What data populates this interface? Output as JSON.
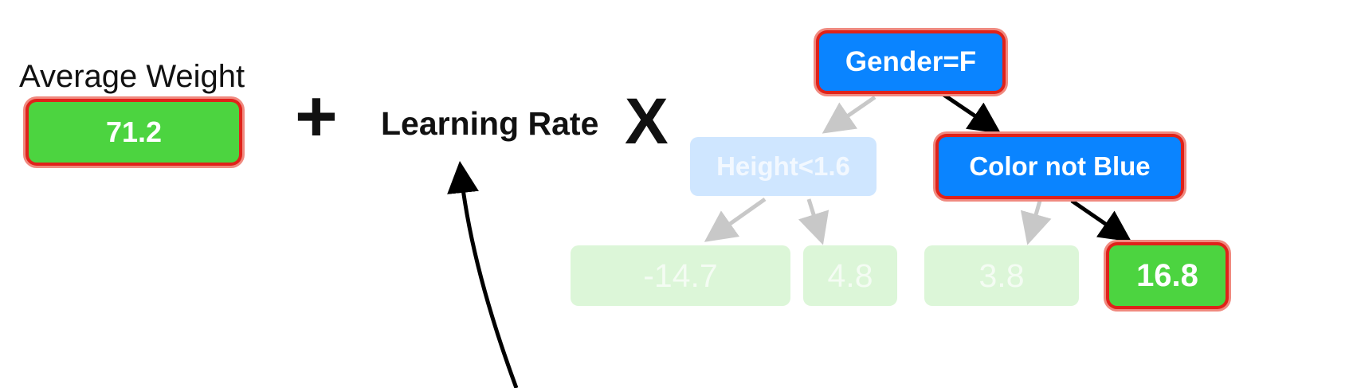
{
  "formula": {
    "average_label": "Average Weight",
    "average_value": "71.2",
    "plus_sign": "+",
    "learning_rate_label": "Learning Rate",
    "times_sign": "X"
  },
  "tree": {
    "root": "Gender=F",
    "left_internal": "Height<1.6",
    "right_internal": "Color not Blue",
    "leaves": [
      "-14.7",
      "4.8",
      "3.8",
      "16.8"
    ]
  },
  "colors": {
    "leaf_green": "#4cd440",
    "node_blue": "#0a84ff",
    "highlight_red": "#e0221a"
  }
}
